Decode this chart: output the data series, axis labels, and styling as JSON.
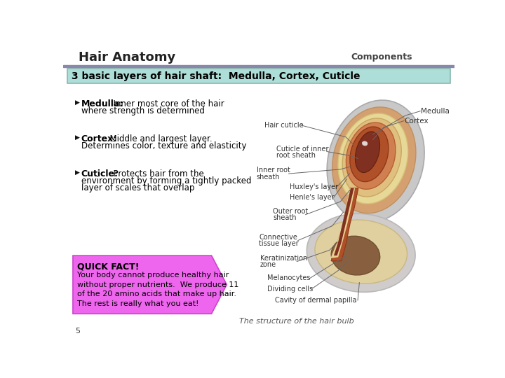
{
  "bg_color": "#ffffff",
  "title": "Hair Anatomy",
  "title_right": "Components",
  "header_bg": "#aeded8",
  "header_text": "3 basic layers of hair shaft:  Medulla, Cortex, Cuticle",
  "header_border": "#88b8b0",
  "divider_color": "#8888aa",
  "quick_fact_title": "QUICK FACT!",
  "quick_fact_text": "Your body cannot produce healthy hair\nwithout proper nutrients.  We produce 11\nof the 20 amino acids that make up hair.\nThe rest is really what you eat!",
  "quick_fact_bg": "#ee66ee",
  "quick_fact_border": "#cc44cc",
  "page_number": "5",
  "caption": "The structure of the hair bulb",
  "label_color": "#333333",
  "line_color": "#666666"
}
